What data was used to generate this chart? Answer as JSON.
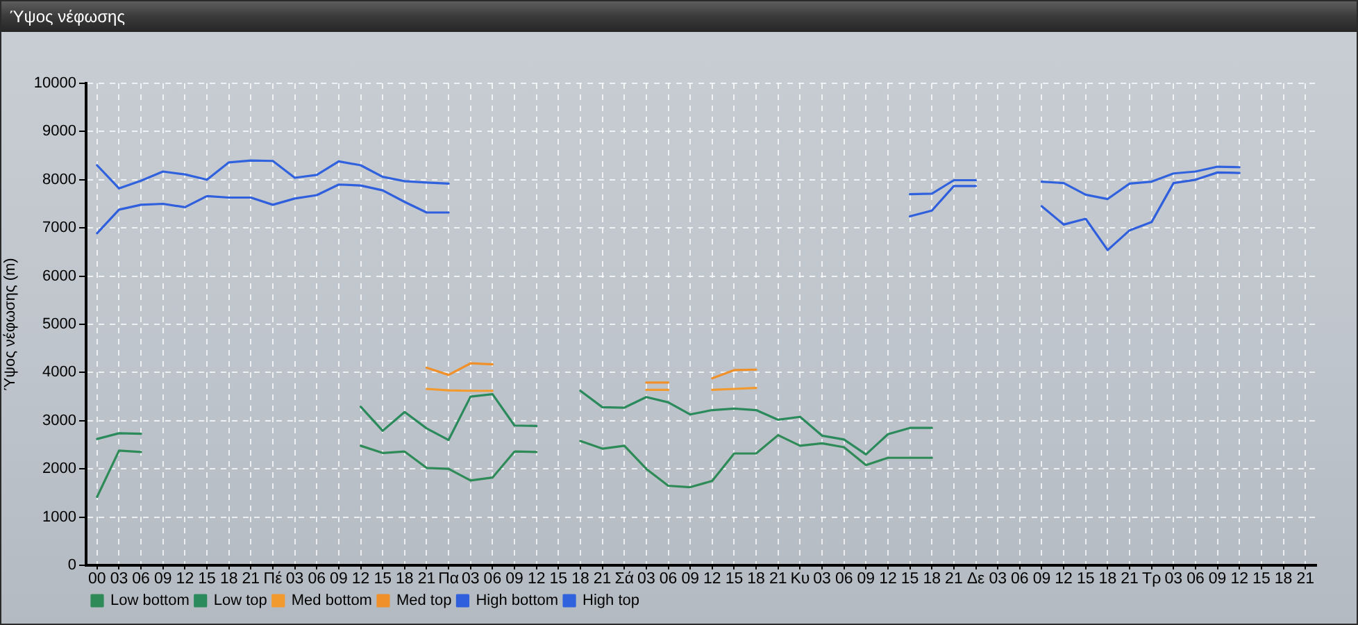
{
  "chart_data": {
    "type": "line",
    "title": "Ύψος νέφωσης",
    "ylabel": "Ύψος νέφωσης (m)",
    "categories": [
      "00",
      "03",
      "06",
      "09",
      "12",
      "15",
      "18",
      "21",
      "Πέ",
      "03",
      "06",
      "09",
      "12",
      "15",
      "18",
      "21",
      "Πα",
      "03",
      "06",
      "09",
      "12",
      "15",
      "18",
      "21",
      "Σά",
      "03",
      "06",
      "09",
      "12",
      "15",
      "18",
      "21",
      "Κυ",
      "03",
      "06",
      "09",
      "12",
      "15",
      "18",
      "21",
      "Δε",
      "03",
      "06",
      "09",
      "12",
      "15",
      "18",
      "21",
      "Τρ",
      "03",
      "06",
      "09",
      "12",
      "15",
      "18",
      "21"
    ],
    "series": [
      {
        "name": "Low bottom",
        "color": "#2e8b57",
        "values": [
          1420,
          2380,
          2350,
          null,
          null,
          null,
          null,
          null,
          null,
          null,
          null,
          null,
          2480,
          2330,
          2360,
          2020,
          2000,
          1760,
          1820,
          2360,
          2350,
          null,
          2580,
          2420,
          2480,
          2000,
          1650,
          1620,
          1750,
          2320,
          2320,
          2700,
          2480,
          2530,
          2450,
          2080,
          2230,
          2230,
          2230,
          null,
          null,
          null,
          null,
          null,
          null,
          null,
          null,
          null,
          null,
          null,
          null,
          null,
          null,
          null,
          null,
          null
        ]
      },
      {
        "name": "Low top",
        "color": "#2a8a5c",
        "values": [
          2620,
          2740,
          2730,
          null,
          null,
          null,
          null,
          null,
          null,
          null,
          null,
          null,
          3290,
          2790,
          3180,
          2840,
          2600,
          3500,
          3550,
          2900,
          2890,
          null,
          3620,
          3280,
          3270,
          3490,
          3380,
          3130,
          3220,
          3250,
          3220,
          3020,
          3080,
          2690,
          2610,
          2300,
          2720,
          2850,
          2850,
          null,
          null,
          null,
          null,
          null,
          null,
          null,
          null,
          null,
          null,
          null,
          null,
          null,
          null,
          null,
          null,
          null
        ]
      },
      {
        "name": "Med bottom",
        "color": "#f39a2e",
        "values": [
          null,
          null,
          null,
          null,
          null,
          null,
          null,
          null,
          null,
          null,
          null,
          null,
          null,
          null,
          null,
          3660,
          3630,
          3620,
          3620,
          null,
          null,
          null,
          null,
          null,
          null,
          3640,
          3640,
          null,
          3640,
          3660,
          3680,
          null,
          null,
          null,
          null,
          null,
          null,
          null,
          null,
          null,
          null,
          null,
          null,
          null,
          null,
          null,
          null,
          null,
          null,
          null,
          null,
          null,
          null,
          null,
          null,
          null
        ]
      },
      {
        "name": "Med top",
        "color": "#f0902a",
        "values": [
          null,
          null,
          null,
          null,
          null,
          null,
          null,
          null,
          null,
          null,
          null,
          null,
          null,
          null,
          null,
          4100,
          3950,
          4190,
          4170,
          null,
          null,
          null,
          null,
          null,
          null,
          3790,
          3790,
          null,
          3880,
          4050,
          4060,
          null,
          null,
          null,
          null,
          null,
          null,
          null,
          null,
          null,
          null,
          null,
          null,
          null,
          null,
          null,
          null,
          null,
          null,
          null,
          null,
          null,
          null,
          null,
          null,
          null
        ]
      },
      {
        "name": "High bottom",
        "color": "#2f5fdc",
        "values": [
          6890,
          7380,
          7480,
          7500,
          7430,
          7660,
          7630,
          7630,
          7480,
          7610,
          7680,
          7900,
          7880,
          7780,
          7540,
          7320,
          7320,
          null,
          null,
          null,
          null,
          null,
          null,
          null,
          null,
          null,
          null,
          null,
          null,
          null,
          null,
          null,
          null,
          null,
          null,
          null,
          null,
          7240,
          7360,
          7870,
          7870,
          null,
          null,
          7450,
          7070,
          7190,
          6540,
          6950,
          7120,
          7930,
          8000,
          8150,
          8140,
          null,
          null,
          null
        ]
      },
      {
        "name": "High top",
        "color": "#3062de",
        "values": [
          8300,
          7820,
          7980,
          8170,
          8110,
          8000,
          8360,
          8400,
          8390,
          8040,
          8100,
          8380,
          8300,
          8060,
          7970,
          7940,
          7920,
          null,
          null,
          null,
          null,
          null,
          null,
          null,
          null,
          null,
          null,
          null,
          null,
          null,
          null,
          null,
          null,
          null,
          null,
          null,
          null,
          7700,
          7710,
          7990,
          7990,
          null,
          null,
          7960,
          7930,
          7690,
          7600,
          7920,
          7960,
          8130,
          8170,
          8270,
          8260,
          null,
          null,
          null
        ]
      }
    ],
    "ylim": [
      0,
      10000
    ],
    "yticks": [
      0,
      1000,
      2000,
      3000,
      4000,
      5000,
      6000,
      7000,
      8000,
      9000,
      10000
    ],
    "grid": true,
    "legend": "bottom left"
  }
}
